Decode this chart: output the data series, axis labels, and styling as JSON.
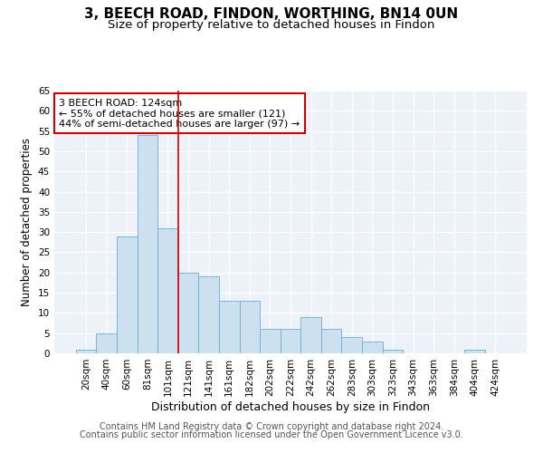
{
  "title": "3, BEECH ROAD, FINDON, WORTHING, BN14 0UN",
  "subtitle": "Size of property relative to detached houses in Findon",
  "xlabel": "Distribution of detached houses by size in Findon",
  "ylabel": "Number of detached properties",
  "categories": [
    "20sqm",
    "40sqm",
    "60sqm",
    "81sqm",
    "101sqm",
    "121sqm",
    "141sqm",
    "161sqm",
    "182sqm",
    "202sqm",
    "222sqm",
    "242sqm",
    "262sqm",
    "283sqm",
    "303sqm",
    "323sqm",
    "343sqm",
    "363sqm",
    "384sqm",
    "404sqm",
    "424sqm"
  ],
  "values": [
    1,
    5,
    29,
    54,
    31,
    20,
    19,
    13,
    13,
    6,
    6,
    9,
    6,
    4,
    3,
    1,
    0,
    0,
    0,
    1,
    0
  ],
  "bar_color": "#cce0f0",
  "bar_edgecolor": "#6aaed6",
  "vline_x_index": 5,
  "vline_color": "#cc0000",
  "annotation_text": "3 BEECH ROAD: 124sqm\n← 55% of detached houses are smaller (121)\n44% of semi-detached houses are larger (97) →",
  "annotation_box_edgecolor": "#cc0000",
  "ylim": [
    0,
    65
  ],
  "yticks": [
    0,
    5,
    10,
    15,
    20,
    25,
    30,
    35,
    40,
    45,
    50,
    55,
    60,
    65
  ],
  "footer_line1": "Contains HM Land Registry data © Crown copyright and database right 2024.",
  "footer_line2": "Contains public sector information licensed under the Open Government Licence v3.0.",
  "plot_bg_color": "#edf2f9",
  "title_fontsize": 11,
  "subtitle_fontsize": 9.5,
  "xlabel_fontsize": 9,
  "ylabel_fontsize": 8.5,
  "tick_fontsize": 7.5,
  "annotation_fontsize": 8,
  "footer_fontsize": 7
}
